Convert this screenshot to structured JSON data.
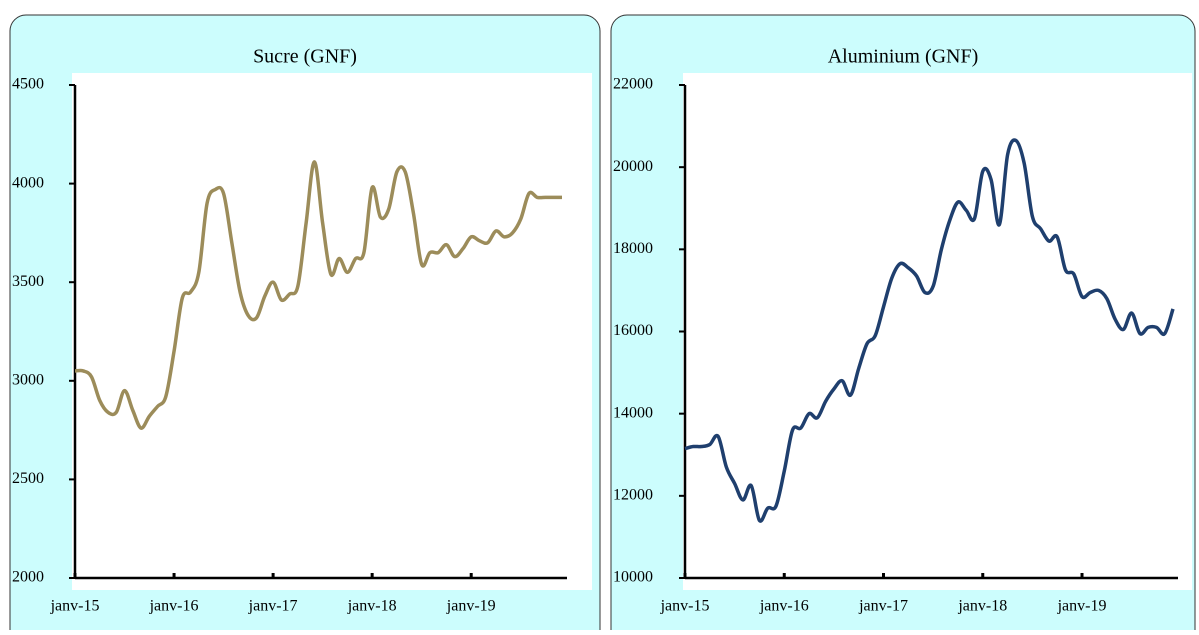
{
  "chart_data": [
    {
      "type": "line",
      "title": "Sucre (GNF)",
      "categories": [
        "janv-15",
        null,
        null,
        null,
        null,
        null,
        null,
        null,
        null,
        null,
        null,
        null,
        "janv-16",
        null,
        null,
        null,
        null,
        null,
        null,
        null,
        null,
        null,
        null,
        null,
        "janv-17",
        null,
        null,
        null,
        null,
        null,
        null,
        null,
        null,
        null,
        null,
        null,
        "janv-18",
        null,
        null,
        null,
        null,
        null,
        null,
        null,
        null,
        null,
        null,
        null,
        "janv-19",
        null,
        null,
        null,
        null,
        null,
        null,
        null,
        null,
        null,
        null,
        null
      ],
      "values": [
        3050,
        3050,
        3020,
        2900,
        2840,
        2840,
        2950,
        2850,
        2760,
        2820,
        2870,
        2920,
        3150,
        3420,
        3450,
        3550,
        3900,
        3970,
        3950,
        3700,
        3450,
        3330,
        3320,
        3430,
        3500,
        3410,
        3440,
        3480,
        3800,
        4110,
        3800,
        3540,
        3620,
        3550,
        3620,
        3650,
        3980,
        3830,
        3870,
        4060,
        4060,
        3850,
        3590,
        3650,
        3650,
        3690,
        3630,
        3670,
        3730,
        3710,
        3700,
        3760,
        3730,
        3750,
        3820,
        3950,
        3930,
        3930,
        3930,
        3930
      ],
      "color": "#9c8c5a",
      "ylim": [
        2000,
        4500
      ],
      "yticks": [
        2000,
        2500,
        3000,
        3500,
        4000,
        4500
      ],
      "grid": false
    },
    {
      "type": "line",
      "title": "Aluminium (GNF)",
      "categories": [
        "janv-15",
        null,
        null,
        null,
        null,
        null,
        null,
        null,
        null,
        null,
        null,
        null,
        "janv-16",
        null,
        null,
        null,
        null,
        null,
        null,
        null,
        null,
        null,
        null,
        null,
        "janv-17",
        null,
        null,
        null,
        null,
        null,
        null,
        null,
        null,
        null,
        null,
        null,
        "janv-18",
        null,
        null,
        null,
        null,
        null,
        null,
        null,
        null,
        null,
        null,
        null,
        "janv-19",
        null,
        null,
        null,
        null,
        null,
        null,
        null,
        null,
        null,
        null,
        null
      ],
      "values": [
        13150,
        13200,
        13200,
        13250,
        13450,
        12700,
        12300,
        11900,
        12250,
        11400,
        11700,
        11750,
        12600,
        13600,
        13650,
        14000,
        13900,
        14300,
        14600,
        14800,
        14450,
        15100,
        15700,
        15900,
        16600,
        17300,
        17650,
        17550,
        17350,
        16950,
        17100,
        18000,
        18700,
        19150,
        18950,
        18750,
        19900,
        19700,
        18600,
        20300,
        20650,
        20100,
        18800,
        18500,
        18200,
        18300,
        17500,
        17400,
        16850,
        16950,
        17000,
        16800,
        16300,
        16050,
        16450,
        15950,
        16100,
        16100,
        15950,
        16550
      ],
      "color": "#1f3f6e",
      "ylim": [
        10000,
        22000
      ],
      "yticks": [
        10000,
        12000,
        14000,
        16000,
        18000,
        20000,
        22000
      ],
      "grid": false
    }
  ]
}
